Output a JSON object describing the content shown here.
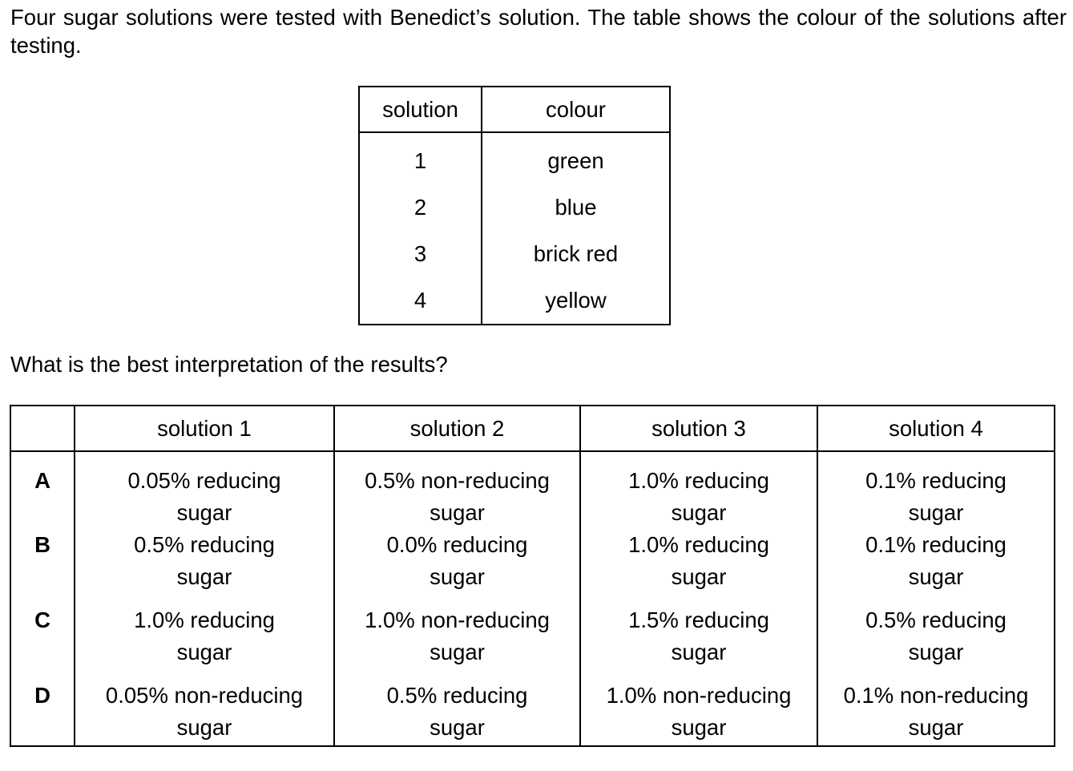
{
  "intro_text": "Four sugar solutions were tested with Benedict’s solution. The table shows the colour of the solutions after testing.",
  "colour_table": {
    "headers": [
      "solution",
      "colour"
    ],
    "rows": [
      {
        "solution": "1",
        "colour": "green"
      },
      {
        "solution": "2",
        "colour": "blue"
      },
      {
        "solution": "3",
        "colour": "brick red"
      },
      {
        "solution": "4",
        "colour": "yellow"
      }
    ]
  },
  "question_text": "What is the best interpretation of the results?",
  "answer_table": {
    "headers": [
      "",
      "solution 1",
      "solution 2",
      "solution 3",
      "solution 4"
    ],
    "rows": [
      {
        "letter": "A",
        "cells": [
          {
            "line1": "0.05% reducing",
            "line2": "sugar"
          },
          {
            "line1": "0.5% non-reducing",
            "line2": "sugar"
          },
          {
            "line1": "1.0% reducing",
            "line2": "sugar"
          },
          {
            "line1": "0.1% reducing",
            "line2": "sugar"
          }
        ]
      },
      {
        "letter": "B",
        "cells": [
          {
            "line1": "0.5% reducing",
            "line2": "sugar"
          },
          {
            "line1": "0.0% reducing",
            "line2": "sugar"
          },
          {
            "line1": "1.0% reducing",
            "line2": "sugar"
          },
          {
            "line1": "0.1% reducing",
            "line2": "sugar"
          }
        ]
      },
      {
        "letter": "C",
        "cells": [
          {
            "line1": "1.0% reducing",
            "line2": "sugar"
          },
          {
            "line1": "1.0% non-reducing",
            "line2": "sugar"
          },
          {
            "line1": "1.5% reducing",
            "line2": "sugar"
          },
          {
            "line1": "0.5% reducing",
            "line2": "sugar"
          }
        ]
      },
      {
        "letter": "D",
        "cells": [
          {
            "line1": "0.05% non-reducing",
            "line2": "sugar"
          },
          {
            "line1": "0.5% reducing",
            "line2": "sugar"
          },
          {
            "line1": "1.0% non-reducing",
            "line2": "sugar"
          },
          {
            "line1": "0.1% non-reducing",
            "line2": "sugar"
          }
        ]
      }
    ]
  }
}
